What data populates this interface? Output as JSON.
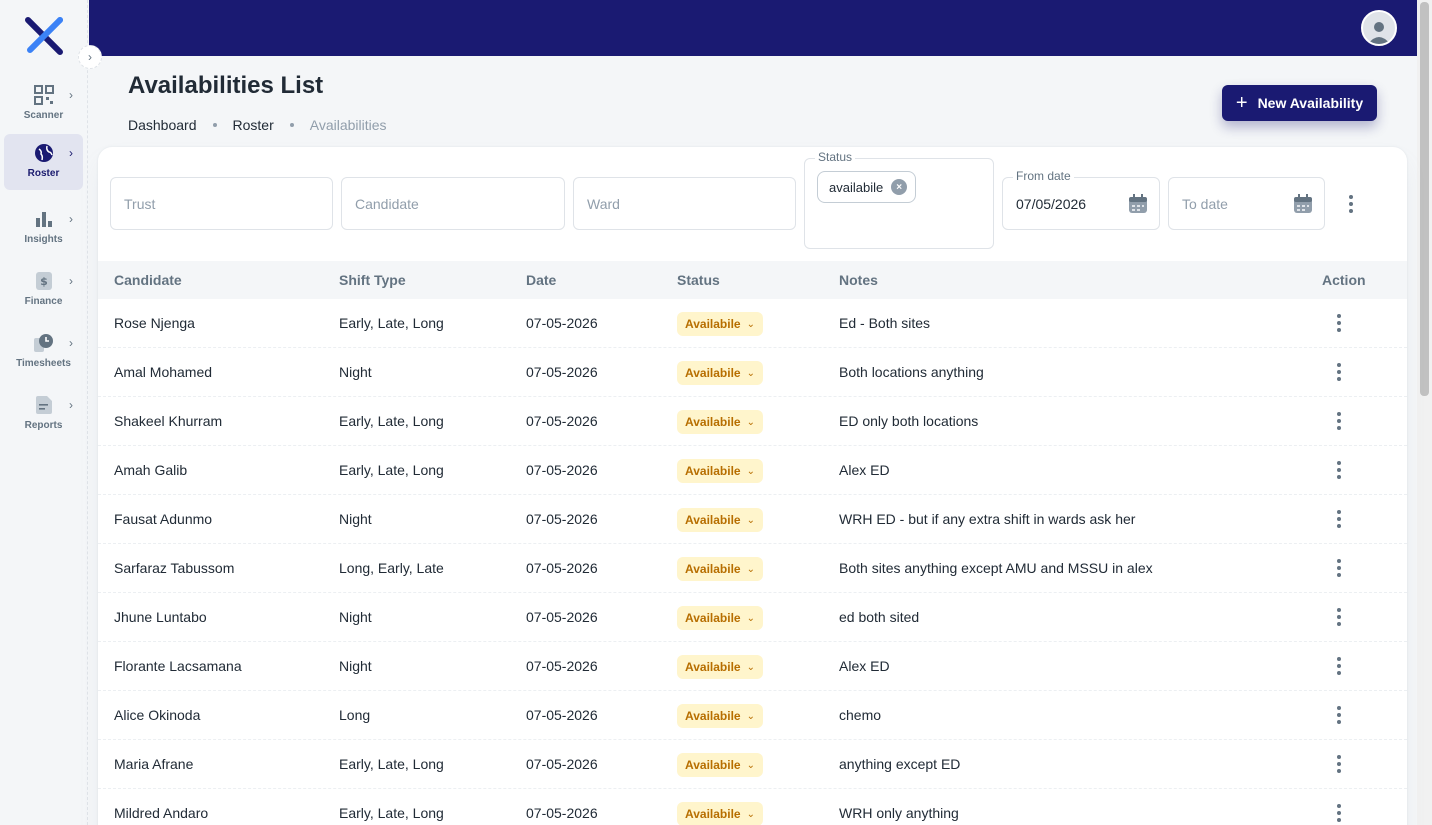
{
  "sidebar": {
    "items": [
      {
        "label": "Scanner",
        "icon": "scanner-icon"
      },
      {
        "label": "Roster",
        "icon": "globe-icon"
      },
      {
        "label": "Insights",
        "icon": "bar-chart-icon"
      },
      {
        "label": "Finance",
        "icon": "finance-icon"
      },
      {
        "label": "Timesheets",
        "icon": "timesheet-icon"
      },
      {
        "label": "Reports",
        "icon": "report-icon"
      }
    ]
  },
  "header": {
    "title": "Availabilities List",
    "breadcrumb": [
      "Dashboard",
      "Roster",
      "Availabilities"
    ],
    "new_button": "New Availability"
  },
  "filters": {
    "trust_placeholder": "Trust",
    "candidate_placeholder": "Candidate",
    "ward_placeholder": "Ward",
    "status_label": "Status",
    "status_chip": "availabile",
    "from_label": "From date",
    "from_value": "07/05/2026",
    "to_placeholder": "To date"
  },
  "table": {
    "columns": [
      "Candidate",
      "Shift Type",
      "Date",
      "Status",
      "Notes",
      "Action"
    ],
    "rows": [
      {
        "candidate": "Rose Njenga",
        "shift": "Early, Late, Long",
        "date": "07-05-2026",
        "status": "Availabile",
        "notes": "Ed - Both sites"
      },
      {
        "candidate": "Amal Mohamed",
        "shift": "Night",
        "date": "07-05-2026",
        "status": "Availabile",
        "notes": "Both locations anything"
      },
      {
        "candidate": "Shakeel Khurram",
        "shift": "Early, Late, Long",
        "date": "07-05-2026",
        "status": "Availabile",
        "notes": "ED only both locations"
      },
      {
        "candidate": "Amah Galib",
        "shift": "Early, Late, Long",
        "date": "07-05-2026",
        "status": "Availabile",
        "notes": "Alex ED"
      },
      {
        "candidate": "Fausat Adunmo",
        "shift": "Night",
        "date": "07-05-2026",
        "status": "Availabile",
        "notes": "WRH ED - but if any extra shift in wards ask her"
      },
      {
        "candidate": "Sarfaraz Tabussom",
        "shift": "Long, Early, Late",
        "date": "07-05-2026",
        "status": "Availabile",
        "notes": "Both sites anything except AMU and MSSU in alex"
      },
      {
        "candidate": "Jhune Luntabo",
        "shift": "Night",
        "date": "07-05-2026",
        "status": "Availabile",
        "notes": "ed both sited"
      },
      {
        "candidate": "Florante Lacsamana",
        "shift": "Night",
        "date": "07-05-2026",
        "status": "Availabile",
        "notes": "Alex ED"
      },
      {
        "candidate": "Alice Okinoda",
        "shift": "Long",
        "date": "07-05-2026",
        "status": "Availabile",
        "notes": "chemo"
      },
      {
        "candidate": "Maria Afrane",
        "shift": "Early, Late, Long",
        "date": "07-05-2026",
        "status": "Availabile",
        "notes": "anything except ED"
      },
      {
        "candidate": "Mildred Andaro",
        "shift": "Early, Late, Long",
        "date": "07-05-2026",
        "status": "Availabile",
        "notes": "WRH only anything"
      }
    ]
  },
  "colors": {
    "brand": "#1a1a72",
    "badge_bg": "#fff5cc",
    "badge_text": "#b76e00"
  }
}
